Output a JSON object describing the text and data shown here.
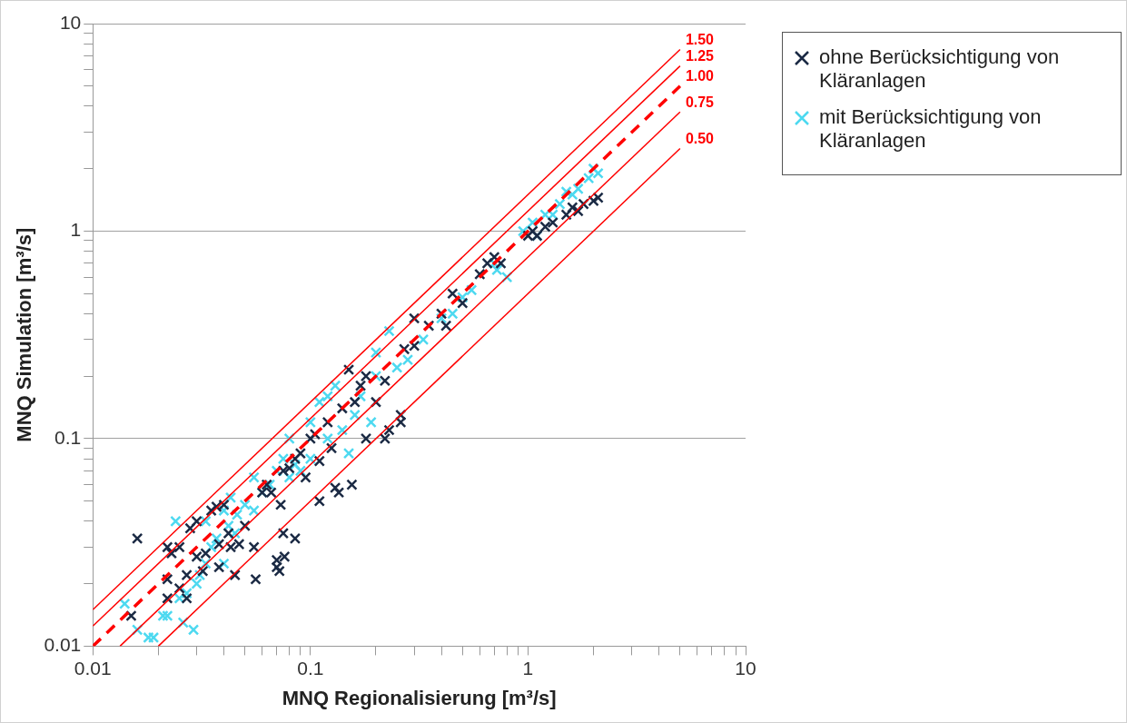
{
  "chart_data": {
    "type": "scatter",
    "xlabel": "MNQ Regionalisierung [m³/s]",
    "ylabel": "MNQ Simulation [m³/s]",
    "log": "xy",
    "grid": "y",
    "legend": "right",
    "xlim": [
      0.01,
      10
    ],
    "ylim": [
      0.01,
      10
    ],
    "xticks": [
      0.01,
      {
        "value": 0.02,
        "label": null
      },
      {
        "value": 0.03,
        "label": null
      },
      {
        "value": 0.04,
        "label": null
      },
      {
        "value": 0.05,
        "label": null
      },
      {
        "value": 0.06,
        "label": null
      },
      {
        "value": 0.07,
        "label": null
      },
      {
        "value": 0.08,
        "label": null
      },
      {
        "value": 0.09,
        "label": null
      },
      0.1,
      {
        "value": 0.2,
        "label": null
      },
      {
        "value": 0.3,
        "label": null
      },
      {
        "value": 0.4,
        "label": null
      },
      {
        "value": 0.5,
        "label": null
      },
      {
        "value": 0.6,
        "label": null
      },
      {
        "value": 0.7,
        "label": null
      },
      {
        "value": 0.8,
        "label": null
      },
      {
        "value": 0.9,
        "label": null
      },
      1,
      {
        "value": 2,
        "label": null
      },
      {
        "value": 3,
        "label": null
      },
      {
        "value": 4,
        "label": null
      },
      {
        "value": 5,
        "label": null
      },
      {
        "value": 6,
        "label": null
      },
      {
        "value": 7,
        "label": null
      },
      {
        "value": 8,
        "label": null
      },
      {
        "value": 9,
        "label": null
      },
      10
    ],
    "yticks": [
      0.01,
      {
        "value": 0.02,
        "label": null
      },
      {
        "value": 0.03,
        "label": null
      },
      {
        "value": 0.04,
        "label": null
      },
      {
        "value": 0.05,
        "label": null
      },
      {
        "value": 0.06,
        "label": null
      },
      {
        "value": 0.07,
        "label": null
      },
      {
        "value": 0.08,
        "label": null
      },
      {
        "value": 0.09,
        "label": null
      },
      0.1,
      {
        "value": 0.2,
        "label": null
      },
      {
        "value": 0.3,
        "label": null
      },
      {
        "value": 0.4,
        "label": null
      },
      {
        "value": 0.5,
        "label": null
      },
      {
        "value": 0.6,
        "label": null
      },
      {
        "value": 0.7,
        "label": null
      },
      {
        "value": 0.8,
        "label": null
      },
      {
        "value": 0.9,
        "label": null
      },
      1,
      {
        "value": 2,
        "label": null
      },
      {
        "value": 3,
        "label": null
      },
      {
        "value": 4,
        "label": null
      },
      {
        "value": 5,
        "label": null
      },
      {
        "value": 6,
        "label": null
      },
      {
        "value": 7,
        "label": null
      },
      {
        "value": 8,
        "label": null
      },
      {
        "value": 9,
        "label": null
      },
      10
    ],
    "series": [
      {
        "name": "ohne Berücksichtigung von Kläranlagen",
        "marker": "cross",
        "color": "#1b2a44",
        "x": [
          0.016,
          0.015,
          0.022,
          0.023,
          0.025,
          0.022,
          0.022,
          0.025,
          0.027,
          0.027,
          0.028,
          0.03,
          0.03,
          0.032,
          0.033,
          0.035,
          0.037,
          0.038,
          0.038,
          0.04,
          0.042,
          0.043,
          0.045,
          0.047,
          0.05,
          0.055,
          0.056,
          0.06,
          0.063,
          0.066,
          0.07,
          0.07,
          0.072,
          0.073,
          0.075,
          0.076,
          0.075,
          0.08,
          0.085,
          0.085,
          0.09,
          0.095,
          0.1,
          0.105,
          0.11,
          0.11,
          0.12,
          0.125,
          0.13,
          0.135,
          0.14,
          0.15,
          0.155,
          0.16,
          0.17,
          0.18,
          0.18,
          0.2,
          0.22,
          0.22,
          0.23,
          0.26,
          0.26,
          0.27,
          0.3,
          0.3,
          0.35,
          0.4,
          0.42,
          0.45,
          0.5,
          0.6,
          0.65,
          0.7,
          0.75,
          1.0,
          1.05,
          1.1,
          1.2,
          1.3,
          1.5,
          1.6,
          1.7,
          1.8,
          2.0,
          2.1
        ],
        "values": [
          0.033,
          0.014,
          0.03,
          0.028,
          0.03,
          0.021,
          0.017,
          0.019,
          0.022,
          0.017,
          0.037,
          0.04,
          0.027,
          0.023,
          0.028,
          0.045,
          0.047,
          0.031,
          0.024,
          0.048,
          0.035,
          0.03,
          0.022,
          0.031,
          0.038,
          0.03,
          0.021,
          0.055,
          0.06,
          0.055,
          0.024,
          0.026,
          0.023,
          0.048,
          0.035,
          0.027,
          0.07,
          0.072,
          0.033,
          0.08,
          0.085,
          0.065,
          0.1,
          0.105,
          0.05,
          0.078,
          0.12,
          0.09,
          0.058,
          0.055,
          0.14,
          0.215,
          0.06,
          0.15,
          0.18,
          0.2,
          0.1,
          0.15,
          0.19,
          0.1,
          0.11,
          0.12,
          0.13,
          0.27,
          0.38,
          0.28,
          0.35,
          0.4,
          0.35,
          0.5,
          0.45,
          0.62,
          0.7,
          0.75,
          0.7,
          0.95,
          1.0,
          0.95,
          1.05,
          1.1,
          1.2,
          1.3,
          1.25,
          1.35,
          1.4,
          1.45
        ]
      },
      {
        "name": "mit Berücksichtigung von Kläranlagen",
        "marker": "cross",
        "color": "#4dd9f0",
        "x": [
          0.014,
          0.016,
          0.018,
          0.019,
          0.021,
          0.022,
          0.024,
          0.025,
          0.026,
          0.027,
          0.029,
          0.03,
          0.031,
          0.033,
          0.033,
          0.035,
          0.037,
          0.04,
          0.04,
          0.042,
          0.043,
          0.045,
          0.046,
          0.05,
          0.055,
          0.055,
          0.06,
          0.065,
          0.07,
          0.075,
          0.08,
          0.08,
          0.085,
          0.09,
          0.1,
          0.1,
          0.11,
          0.12,
          0.12,
          0.13,
          0.14,
          0.15,
          0.16,
          0.17,
          0.19,
          0.2,
          0.2,
          0.23,
          0.25,
          0.28,
          0.33,
          0.4,
          0.45,
          0.5,
          0.55,
          0.7,
          0.72,
          0.8,
          0.95,
          1.05,
          1.1,
          1.2,
          1.3,
          1.4,
          1.5,
          1.6,
          1.7,
          1.9,
          2.0,
          2.1
        ],
        "values": [
          0.016,
          0.012,
          0.011,
          0.011,
          0.014,
          0.014,
          0.04,
          0.017,
          0.013,
          0.018,
          0.012,
          0.02,
          0.022,
          0.025,
          0.04,
          0.03,
          0.033,
          0.025,
          0.045,
          0.038,
          0.052,
          0.035,
          0.043,
          0.048,
          0.065,
          0.045,
          0.055,
          0.06,
          0.07,
          0.08,
          0.065,
          0.1,
          0.075,
          0.07,
          0.12,
          0.08,
          0.15,
          0.16,
          0.1,
          0.18,
          0.11,
          0.085,
          0.13,
          0.16,
          0.12,
          0.2,
          0.26,
          0.33,
          0.22,
          0.24,
          0.3,
          0.38,
          0.4,
          0.48,
          0.52,
          0.7,
          0.65,
          0.6,
          1.0,
          1.1,
          0.95,
          1.2,
          1.2,
          1.35,
          1.55,
          1.5,
          1.6,
          1.8,
          2.0,
          1.9
        ]
      },
      {
        "name": "1.50",
        "type": "line",
        "marker": "none",
        "color": "#ff0000",
        "x": [
          0.01,
          5
        ],
        "values": [
          0.015,
          7.5
        ]
      },
      {
        "name": "1.25",
        "type": "line",
        "marker": "none",
        "color": "#ff0000",
        "x": [
          0.01,
          5
        ],
        "values": [
          0.0125,
          6.25
        ]
      },
      {
        "name": "1.00",
        "type": "line",
        "marker": "none",
        "line_style": "dashed",
        "color": "#ff0000",
        "x": [
          0.01,
          5
        ],
        "values": [
          0.01,
          5
        ]
      },
      {
        "name": "0.75",
        "type": "line",
        "marker": "none",
        "color": "#ff0000",
        "x": [
          0.01333,
          5
        ],
        "values": [
          0.01,
          3.75
        ]
      },
      {
        "name": "0.50",
        "type": "line",
        "marker": "none",
        "color": "#ff0000",
        "x": [
          0.02,
          5
        ],
        "values": [
          0.01,
          2.5
        ]
      }
    ]
  }
}
